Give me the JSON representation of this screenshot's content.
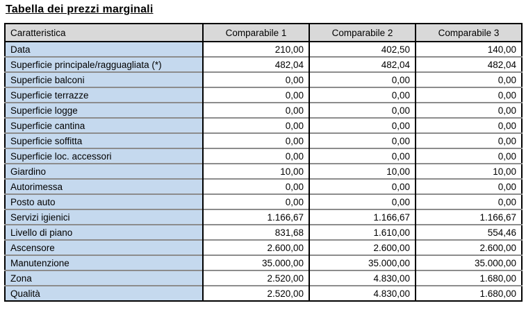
{
  "title": "Tabella dei prezzi marginali",
  "colors": {
    "header_bg": "#d9d9d9",
    "label_bg": "#c5d9ee",
    "outer_border": "#000000",
    "row_line": "rgba(0,0,0,0.45)",
    "text": "#000000",
    "page_bg": "#ffffff"
  },
  "table": {
    "header": [
      "Caratteristica",
      "Comparabile 1",
      "Comparabile 2",
      "Comparabile 3"
    ],
    "rows": [
      {
        "label": "Data",
        "values": [
          "210,00",
          "402,50",
          "140,00"
        ]
      },
      {
        "label": "Superficie principale/ragguagliata (*)",
        "values": [
          "482,04",
          "482,04",
          "482,04"
        ]
      },
      {
        "label": "Superficie balconi",
        "values": [
          "0,00",
          "0,00",
          "0,00"
        ]
      },
      {
        "label": "Superficie terrazze",
        "values": [
          "0,00",
          "0,00",
          "0,00"
        ]
      },
      {
        "label": "Superficie logge",
        "values": [
          "0,00",
          "0,00",
          "0,00"
        ]
      },
      {
        "label": "Superficie cantina",
        "values": [
          "0,00",
          "0,00",
          "0,00"
        ]
      },
      {
        "label": "Superficie soffitta",
        "values": [
          "0,00",
          "0,00",
          "0,00"
        ]
      },
      {
        "label": "Superficie loc. accessori",
        "values": [
          "0,00",
          "0,00",
          "0,00"
        ]
      },
      {
        "label": "Giardino",
        "values": [
          "10,00",
          "10,00",
          "10,00"
        ]
      },
      {
        "label": "Autorimessa",
        "values": [
          "0,00",
          "0,00",
          "0,00"
        ]
      },
      {
        "label": "Posto auto",
        "values": [
          "0,00",
          "0,00",
          "0,00"
        ]
      },
      {
        "label": "Servizi igienici",
        "values": [
          "1.166,67",
          "1.166,67",
          "1.166,67"
        ]
      },
      {
        "label": "Livello di piano",
        "values": [
          "831,68",
          "1.610,00",
          "554,46"
        ]
      },
      {
        "label": "Ascensore",
        "values": [
          "2.600,00",
          "2.600,00",
          "2.600,00"
        ]
      },
      {
        "label": "Manutenzione",
        "values": [
          "35.000,00",
          "35.000,00",
          "35.000,00"
        ]
      },
      {
        "label": "Zona",
        "values": [
          "2.520,00",
          "4.830,00",
          "1.680,00"
        ]
      },
      {
        "label": "Qualità",
        "values": [
          "2.520,00",
          "4.830,00",
          "1.680,00"
        ]
      }
    ]
  }
}
